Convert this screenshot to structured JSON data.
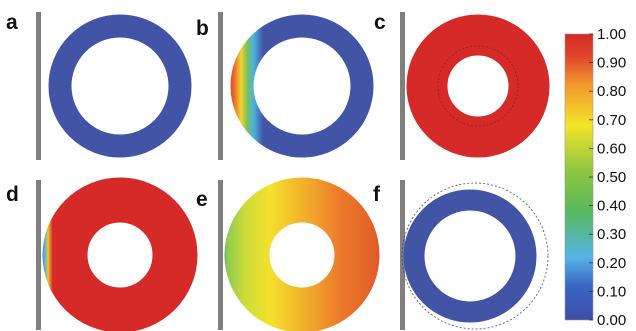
{
  "panels": [
    {
      "label": "a",
      "state": "uniform-low"
    },
    {
      "label": "b",
      "state": "left-contact-band"
    },
    {
      "label": "c",
      "state": "uniform-high"
    },
    {
      "label": "d",
      "state": "mostly-high-left-edge"
    },
    {
      "label": "e",
      "state": "gradient-left-to-right"
    },
    {
      "label": "f",
      "state": "uniform-low-displaced"
    }
  ],
  "colorbar": {
    "ticks": [
      "1.00",
      "0.90",
      "0.80",
      "0.70",
      "0.60",
      "0.50",
      "0.40",
      "0.30",
      "0.20",
      "0.10",
      "0.00"
    ],
    "stops": [
      "#3d4ea6",
      "#3a66c4",
      "#56b4e6",
      "#58b95d",
      "#8cc63f",
      "#f2e529",
      "#f29a2b",
      "#e0462a",
      "#d32a26"
    ]
  },
  "colors": {
    "low": "#4254a5",
    "high": "#d52a27",
    "wall": "#808080"
  }
}
